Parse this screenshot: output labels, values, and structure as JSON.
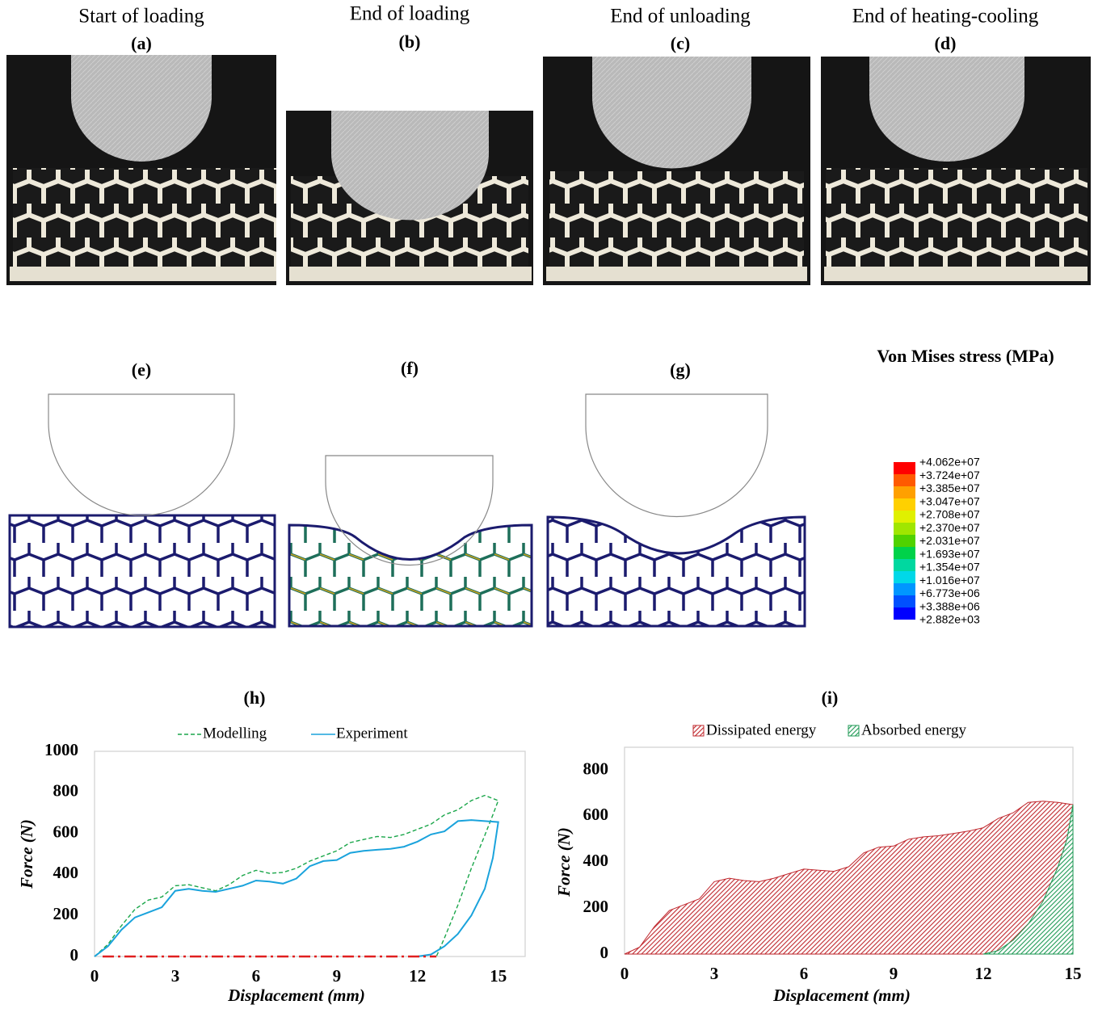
{
  "photos": [
    {
      "title": "Start of loading",
      "label": "(a)"
    },
    {
      "title": "End of loading",
      "label": "(b)"
    },
    {
      "title": "End of unloading",
      "label": "(c)"
    },
    {
      "title": "End of heating-cooling",
      "label": "(d)"
    }
  ],
  "fea": {
    "labels": [
      "(e)",
      "(f)",
      "(g)"
    ],
    "colorbar_title": "Von Mises stress (MPa)",
    "colorbar_labels": [
      "+4.062e+07",
      "+3.724e+07",
      "+3.385e+07",
      "+3.047e+07",
      "+2.708e+07",
      "+2.370e+07",
      "+2.031e+07",
      "+1.693e+07",
      "+1.354e+07",
      "+1.016e+07",
      "+6.773e+06",
      "+3.388e+06",
      "+2.882e+03"
    ],
    "colorbar_colors": [
      "#ff0000",
      "#ff5a00",
      "#ffa000",
      "#ffd000",
      "#e0f000",
      "#a0e600",
      "#50d200",
      "#00d24a",
      "#00d8a0",
      "#00d8e8",
      "#0096ff",
      "#0050ff",
      "#0000ff"
    ]
  },
  "chart_data": [
    {
      "type": "line",
      "title": "(h)",
      "x_label": "Displacement (mm)",
      "y_label": "Force (N)",
      "xlim": [
        0,
        16
      ],
      "xticks": [
        0,
        3,
        6,
        9,
        12,
        15
      ],
      "ylim": [
        0,
        1000
      ],
      "yticks": [
        0,
        200,
        400,
        600,
        800,
        1000
      ],
      "series": [
        {
          "name": "Modelling",
          "color": "#1aa64a",
          "dash": "dashed",
          "x": [
            0,
            0.5,
            1,
            1.5,
            2,
            2.5,
            3,
            3.5,
            4,
            4.5,
            5,
            5.5,
            6,
            6.5,
            7,
            7.5,
            8,
            8.5,
            9,
            9.5,
            10,
            10.5,
            11,
            11.5,
            12,
            12.5,
            13,
            13.5,
            14,
            14.5,
            15,
            14.8,
            14.5,
            14,
            13.5,
            13,
            12.7
          ],
          "values": [
            0,
            60,
            150,
            230,
            275,
            290,
            345,
            350,
            335,
            320,
            350,
            395,
            420,
            405,
            410,
            430,
            465,
            490,
            515,
            555,
            570,
            585,
            580,
            595,
            620,
            645,
            690,
            715,
            760,
            785,
            760,
            690,
            590,
            430,
            250,
            90,
            0
          ]
        },
        {
          "name": "Experiment",
          "color": "#1aa3dc",
          "dash": "solid",
          "x": [
            0,
            0.5,
            1,
            1.5,
            2,
            2.5,
            3,
            3.5,
            4,
            4.5,
            5,
            5.5,
            6,
            6.5,
            7,
            7.5,
            8,
            8.5,
            9,
            9.5,
            10,
            10.5,
            11,
            11.5,
            12,
            12.5,
            13,
            13.5,
            14,
            14.5,
            15,
            14.8,
            14.5,
            14,
            13.5,
            13,
            12.5,
            12
          ],
          "values": [
            0,
            50,
            130,
            190,
            215,
            240,
            320,
            330,
            320,
            315,
            330,
            345,
            370,
            365,
            355,
            380,
            440,
            465,
            470,
            505,
            515,
            520,
            525,
            535,
            560,
            595,
            610,
            660,
            665,
            660,
            655,
            480,
            330,
            200,
            110,
            50,
            10,
            0
          ]
        },
        {
          "color": "#e02020",
          "dash": "dashdot",
          "x": [
            0.3,
            12.7
          ],
          "values": [
            0,
            0
          ]
        }
      ]
    },
    {
      "type": "area",
      "title": "(i)",
      "x_label": "Displacement (mm)",
      "y_label": "Force (N)",
      "xlim": [
        0,
        15
      ],
      "xticks": [
        0,
        3,
        6,
        9,
        12,
        15
      ],
      "ylim": [
        0,
        900
      ],
      "yticks": [
        0,
        200,
        400,
        600,
        800
      ],
      "series": [
        {
          "name": "Dissipated energy",
          "color": "#c0282e",
          "x": [
            0,
            0.5,
            1,
            1.5,
            2,
            2.5,
            3,
            3.5,
            4,
            4.5,
            5,
            5.5,
            6,
            6.5,
            7,
            7.5,
            8,
            8.5,
            9,
            9.5,
            10,
            10.5,
            11,
            11.5,
            12,
            12.5,
            13,
            13.5,
            14,
            14.5,
            15
          ],
          "values": [
            0,
            30,
            120,
            190,
            215,
            240,
            315,
            330,
            320,
            315,
            330,
            350,
            370,
            365,
            360,
            380,
            440,
            465,
            470,
            500,
            510,
            515,
            525,
            535,
            550,
            590,
            615,
            660,
            665,
            660,
            650
          ]
        },
        {
          "name": "Absorbed energy",
          "color": "#1f9a55",
          "x": [
            12,
            12.5,
            13,
            13.5,
            14,
            14.5,
            14.8,
            15
          ],
          "values": [
            0,
            15,
            60,
            130,
            230,
            380,
            500,
            650
          ]
        }
      ]
    }
  ]
}
